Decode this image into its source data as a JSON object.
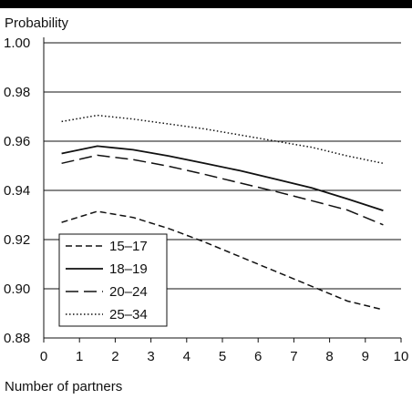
{
  "chart_data": {
    "type": "line",
    "ylabel": "Probability",
    "xlabel": "Number of partners",
    "xlim": [
      0,
      10
    ],
    "ylim": [
      0.88,
      1.0
    ],
    "x_ticks": [
      "0",
      "1",
      "2",
      "3",
      "4",
      "5",
      "6",
      "7",
      "8",
      "9",
      "10"
    ],
    "y_ticks": [
      "0.88",
      "0.90",
      "0.92",
      "0.94",
      "0.96",
      "0.98",
      "1.00"
    ],
    "grid": "horizontal",
    "legend_position": "bottom-left",
    "series": [
      {
        "name": "15–17",
        "style": "short-dash",
        "x": [
          0.5,
          1.5,
          2.5,
          3.5,
          4.5,
          5.5,
          6.5,
          7.5,
          8.5,
          9.5
        ],
        "values": [
          0.927,
          0.9315,
          0.929,
          0.9245,
          0.919,
          0.913,
          0.907,
          0.901,
          0.895,
          0.8915
        ]
      },
      {
        "name": "18–19",
        "style": "solid",
        "x": [
          0.5,
          1.5,
          2.5,
          3.5,
          4.5,
          5.5,
          6.5,
          7.5,
          8.5,
          9.5
        ],
        "values": [
          0.955,
          0.958,
          0.9565,
          0.954,
          0.951,
          0.948,
          0.9445,
          0.941,
          0.9365,
          0.9318
        ]
      },
      {
        "name": "20–24",
        "style": "long-dash",
        "x": [
          0.5,
          1.5,
          2.5,
          3.5,
          4.5,
          5.5,
          6.5,
          7.5,
          8.5,
          9.5
        ],
        "values": [
          0.951,
          0.9543,
          0.9525,
          0.9498,
          0.9465,
          0.943,
          0.9395,
          0.9358,
          0.932,
          0.926
        ]
      },
      {
        "name": "25–34",
        "style": "dotted",
        "x": [
          0.5,
          1.5,
          2.5,
          3.5,
          4.5,
          5.5,
          6.5,
          7.5,
          8.5,
          9.5
        ],
        "values": [
          0.968,
          0.9705,
          0.969,
          0.967,
          0.965,
          0.9625,
          0.96,
          0.9575,
          0.954,
          0.951
        ]
      }
    ]
  }
}
